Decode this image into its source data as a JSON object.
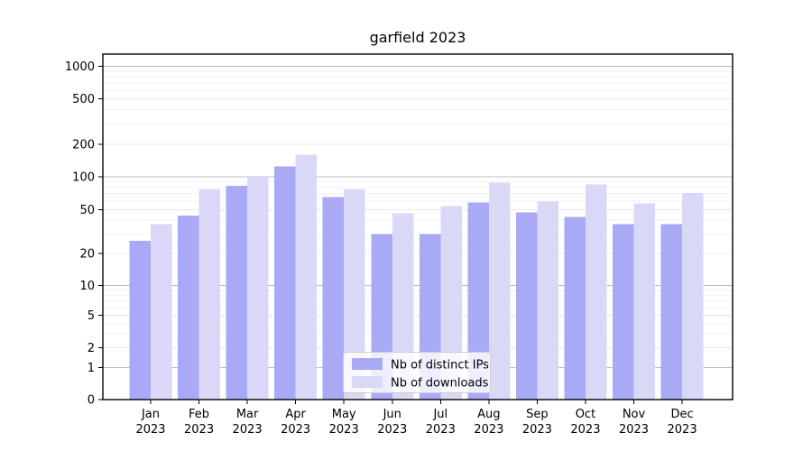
{
  "title": "garfield 2023",
  "chart_data": {
    "type": "bar",
    "title": "garfield 2023",
    "categories": [
      "Jan",
      "Feb",
      "Mar",
      "Apr",
      "May",
      "Jun",
      "Jul",
      "Aug",
      "Sep",
      "Oct",
      "Nov",
      "Dec"
    ],
    "year_label": "2023",
    "series": [
      {
        "name": "Nb of distinct IPs",
        "color": "#a9a9f5",
        "values": [
          26,
          44,
          83,
          125,
          65,
          30,
          30,
          58,
          47,
          43,
          37,
          37
        ]
      },
      {
        "name": "Nb of downloads",
        "color": "#d9d9f7",
        "values": [
          37,
          77,
          100,
          160,
          77,
          46,
          54,
          88,
          59,
          85,
          57,
          71
        ]
      }
    ],
    "xlabel": "",
    "ylabel": "",
    "yscale": "log-like with 1-2-5 ticks and 0 baseline",
    "yticks": [
      0,
      1,
      2,
      5,
      10,
      20,
      50,
      100,
      200,
      500,
      1000
    ],
    "ylim": [
      0,
      1300
    ],
    "grid": "on",
    "legend_position": "lower center",
    "colors": {
      "bar_dark": "#a9a9f5",
      "bar_light": "#d9d9f7",
      "grid_major": "#bcbcbc",
      "grid_mid": "#e8e8e8",
      "grid_minor": "#f2f2f2",
      "axis": "#000000",
      "legend_border": "#cccccc"
    }
  }
}
